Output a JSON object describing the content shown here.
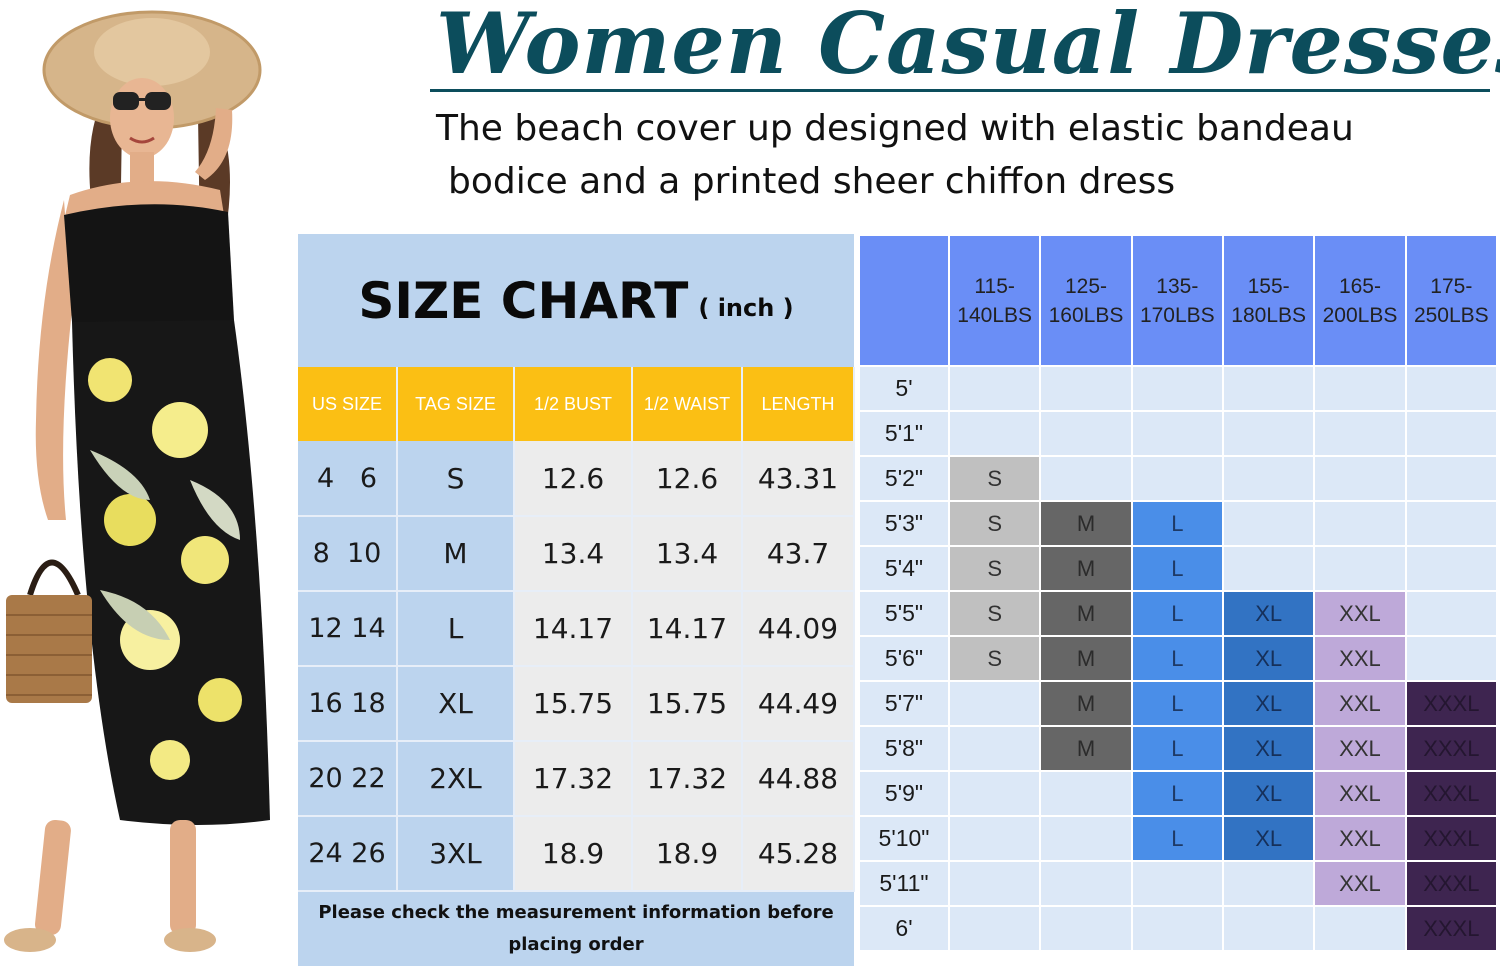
{
  "title": "Women Casual Dresses",
  "subtitle": {
    "line1": "The beach cover up designed with elastic bandeau",
    "line2": "bodice and a printed sheer chiffon dress"
  },
  "size_chart": {
    "title": "SIZE CHART",
    "unit": "( inch )",
    "headers": [
      "US SIZE",
      "TAG SIZE",
      "1/2 BUST",
      "1/2 WAIST",
      "LENGTH"
    ],
    "rows": [
      [
        "4   6",
        "S",
        "12.6",
        "12.6",
        "43.31"
      ],
      [
        "8  10",
        "M",
        "13.4",
        "13.4",
        "43.7"
      ],
      [
        "12 14",
        "L",
        "14.17",
        "14.17",
        "44.09"
      ],
      [
        "16 18",
        "XL",
        "15.75",
        "15.75",
        "44.49"
      ],
      [
        "20 22",
        "2XL",
        "17.32",
        "17.32",
        "44.88"
      ],
      [
        "24 26",
        "3XL",
        "18.9",
        "18.9",
        "45.28"
      ]
    ],
    "note_line1": "Please check the measurement information before",
    "note_line2": "placing order"
  },
  "fit_grid": {
    "weights": [
      [
        "115-",
        "140LBS"
      ],
      [
        "125-",
        "160LBS"
      ],
      [
        "135-",
        "170LBS"
      ],
      [
        "155-",
        "180LBS"
      ],
      [
        "165-",
        "200LBS"
      ],
      [
        "175-",
        "250LBS"
      ]
    ],
    "heights": [
      "5'",
      "5'1\"",
      "5'2\"",
      "5'3\"",
      "5'4\"",
      "5'5\"",
      "5'6\"",
      "5'7\"",
      "5'8\"",
      "5'9\"",
      "5'10\"",
      "5'11\"",
      "6'"
    ],
    "cells": [
      [
        "",
        "",
        "",
        "",
        "",
        ""
      ],
      [
        "",
        "",
        "",
        "",
        "",
        ""
      ],
      [
        "S",
        "",
        "",
        "",
        "",
        ""
      ],
      [
        "S",
        "M",
        "L",
        "",
        "",
        ""
      ],
      [
        "S",
        "M",
        "L",
        "",
        "",
        ""
      ],
      [
        "S",
        "M",
        "L",
        "XL",
        "XXL",
        ""
      ],
      [
        "S",
        "M",
        "L",
        "XL",
        "XXL",
        ""
      ],
      [
        "",
        "M",
        "L",
        "XL",
        "XXL",
        "XXXL"
      ],
      [
        "",
        "M",
        "L",
        "XL",
        "XXL",
        "XXXL"
      ],
      [
        "",
        "",
        "L",
        "XL",
        "XXL",
        "XXXL"
      ],
      [
        "",
        "",
        "L",
        "XL",
        "XXL",
        "XXXL"
      ],
      [
        "",
        "",
        "",
        "",
        "XXL",
        "XXXL"
      ],
      [
        "",
        "",
        "",
        "",
        "",
        "XXXL"
      ]
    ],
    "colors": {
      "S": "#c0c0c0",
      "M": "#666666",
      "L": "#4a8ee8",
      "XL": "#3273c3",
      "XXL": "#bea9d9",
      "XXXL": "#3e2550"
    }
  },
  "colors": {
    "title": "#0c4d5c",
    "chart_background": "#bcd4ee",
    "header_yellow": "#fbbf14",
    "grid_header": "#6a8ef6"
  },
  "icons": {
    "model": "woman-in-floral-dress-image"
  }
}
